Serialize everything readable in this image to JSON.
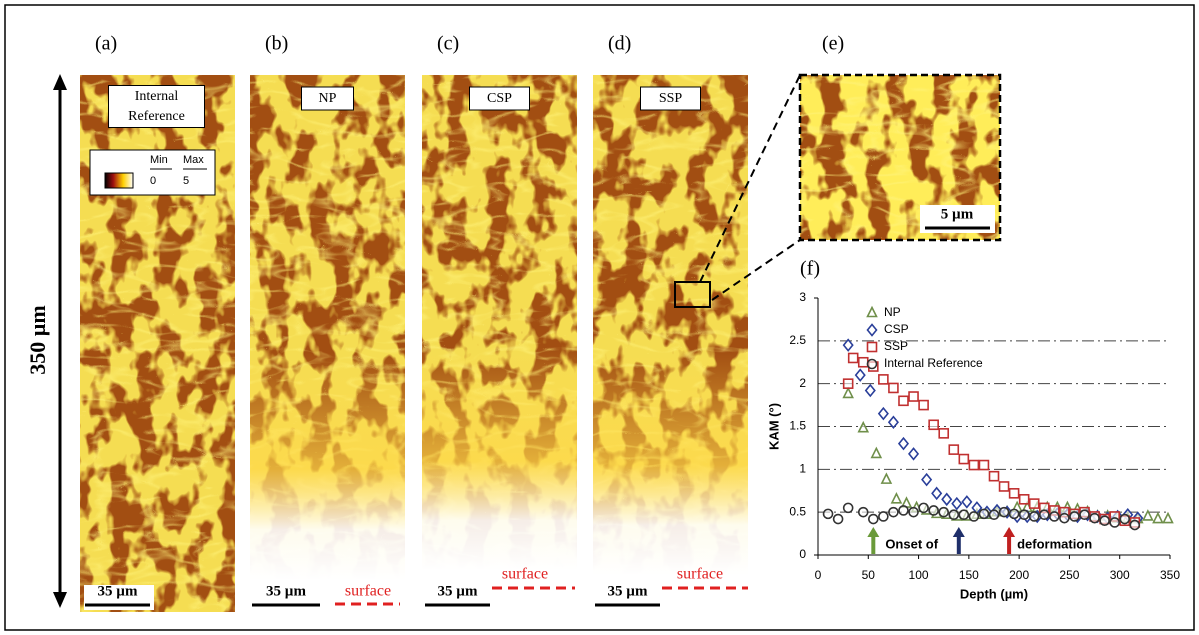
{
  "height_label": "350 µm",
  "surface_label": "surface",
  "panels": [
    {
      "label": "(a)",
      "title": "Internal Reference",
      "scale_bar": "35 µm"
    },
    {
      "label": "(b)",
      "title": "NP",
      "scale_bar": "35 µm"
    },
    {
      "label": "(c)",
      "title": "CSP",
      "scale_bar": "35 µm"
    },
    {
      "label": "(d)",
      "title": "SSP",
      "scale_bar": "35 µm"
    }
  ],
  "colorbar": {
    "min_label": "Min",
    "max_label": "Max",
    "min": 0,
    "max": 5
  },
  "zoom": {
    "label": "(e)",
    "scale_bar": "5 µm"
  },
  "chart_data": {
    "type": "scatter",
    "panel_label": "(f)",
    "x_label": "Depth (µm)",
    "y_label": "KAM (°)",
    "xlim": [
      0,
      350
    ],
    "ylim": [
      0,
      3
    ],
    "xticks": [
      0,
      50,
      100,
      150,
      200,
      250,
      300,
      350
    ],
    "yticks": [
      0,
      0.5,
      1,
      1.5,
      2,
      2.5,
      3
    ],
    "grid": true,
    "legend": "upper right",
    "annotations": [
      "Onset of",
      "deformation"
    ],
    "onset_arrows": [
      {
        "x": 55,
        "color": "#6a9a3a"
      },
      {
        "x": 140,
        "color": "#1f2f6a"
      },
      {
        "x": 190,
        "color": "#c02020"
      }
    ],
    "series": [
      {
        "name": "NP",
        "color": "#6f8f4a",
        "marker": "triangle",
        "x": [
          30,
          45,
          58,
          68,
          78,
          88,
          98,
          108,
          118,
          128,
          138,
          148,
          158,
          168,
          178,
          188,
          198,
          208,
          218,
          228,
          238,
          248,
          258,
          268,
          278,
          288,
          298,
          308,
          318,
          328,
          338,
          348
        ],
        "values": [
          1.88,
          1.48,
          1.18,
          0.88,
          0.65,
          0.6,
          0.55,
          0.52,
          0.48,
          0.47,
          0.45,
          0.45,
          0.47,
          0.47,
          0.5,
          0.5,
          0.55,
          0.55,
          0.55,
          0.55,
          0.55,
          0.55,
          0.53,
          0.5,
          0.45,
          0.45,
          0.43,
          0.43,
          0.42,
          0.45,
          0.42,
          0.42
        ]
      },
      {
        "name": "CSP",
        "color": "#2a3f9a",
        "marker": "diamond",
        "x": [
          30,
          42,
          52,
          65,
          75,
          85,
          95,
          108,
          118,
          128,
          138,
          148,
          158,
          168,
          178,
          188,
          198,
          208,
          218,
          228,
          238,
          248,
          258,
          268,
          278,
          288,
          298,
          308,
          318
        ],
        "values": [
          2.45,
          2.1,
          1.92,
          1.65,
          1.55,
          1.3,
          1.18,
          0.88,
          0.72,
          0.65,
          0.6,
          0.62,
          0.55,
          0.5,
          0.52,
          0.5,
          0.45,
          0.45,
          0.45,
          0.47,
          0.48,
          0.47,
          0.45,
          0.47,
          0.45,
          0.43,
          0.45,
          0.47,
          0.43
        ]
      },
      {
        "name": "SSP",
        "color": "#c03030",
        "marker": "square",
        "x": [
          30,
          35,
          45,
          55,
          65,
          75,
          85,
          95,
          105,
          115,
          125,
          135,
          145,
          155,
          165,
          175,
          185,
          195,
          205,
          215,
          225,
          235,
          245,
          255,
          265,
          275,
          285,
          295,
          305,
          315
        ],
        "values": [
          2.0,
          2.3,
          2.25,
          2.2,
          2.05,
          1.95,
          1.8,
          1.85,
          1.75,
          1.52,
          1.42,
          1.23,
          1.12,
          1.05,
          1.05,
          0.92,
          0.8,
          0.72,
          0.65,
          0.6,
          0.55,
          0.52,
          0.5,
          0.48,
          0.5,
          0.45,
          0.42,
          0.45,
          0.4,
          0.38
        ]
      },
      {
        "name": "Internal Reference",
        "color": "#333333",
        "marker": "circle",
        "x": [
          10,
          20,
          30,
          45,
          55,
          65,
          75,
          85,
          95,
          105,
          115,
          125,
          135,
          145,
          155,
          165,
          175,
          185,
          195,
          205,
          215,
          225,
          235,
          245,
          255,
          265,
          275,
          285,
          295,
          305,
          315
        ],
        "values": [
          0.48,
          0.42,
          0.55,
          0.5,
          0.42,
          0.45,
          0.5,
          0.52,
          0.5,
          0.55,
          0.52,
          0.5,
          0.47,
          0.47,
          0.45,
          0.48,
          0.47,
          0.5,
          0.48,
          0.47,
          0.45,
          0.47,
          0.45,
          0.43,
          0.45,
          0.47,
          0.43,
          0.4,
          0.38,
          0.42,
          0.35
        ]
      }
    ]
  }
}
